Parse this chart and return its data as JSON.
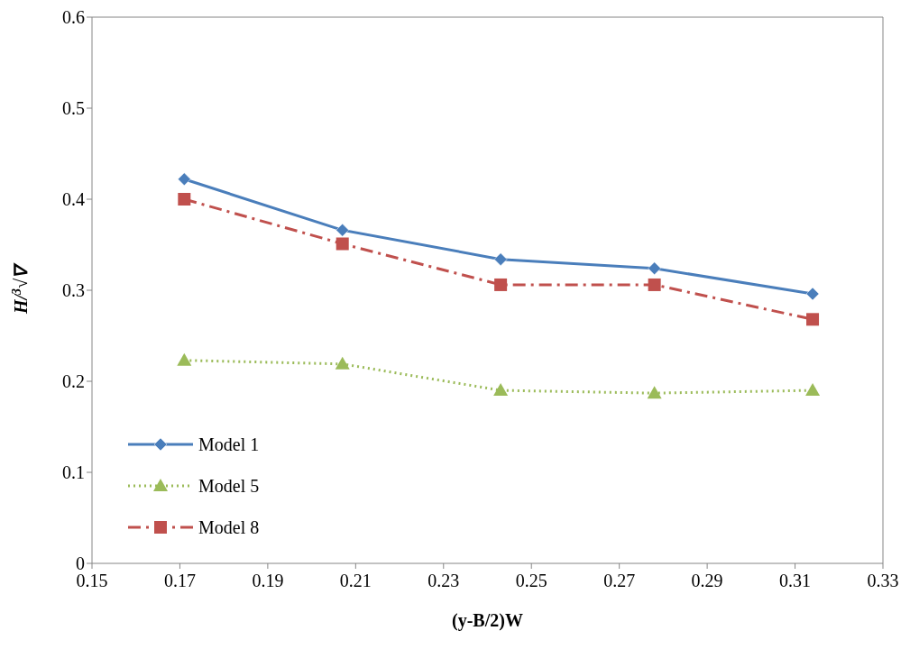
{
  "chart_data": {
    "type": "line",
    "xlabel": "(y-B/2)W",
    "ylabel": "H/$^{3}$√∇",
    "x": [
      0.171,
      0.207,
      0.243,
      0.278,
      0.314
    ],
    "series": [
      {
        "name": "Model 1",
        "color": "#4a7ebb",
        "values": [
          0.422,
          0.366,
          0.334,
          0.324,
          0.296
        ],
        "marker": "diamond",
        "line_style": "solid"
      },
      {
        "name": "Model 5",
        "color": "#9bbb59",
        "values": [
          0.223,
          0.219,
          0.19,
          0.187,
          0.19
        ],
        "marker": "triangle",
        "line_style": "dotted"
      },
      {
        "name": "Model 8",
        "color": "#c0504d",
        "values": [
          0.4,
          0.351,
          0.306,
          0.306,
          0.268
        ],
        "marker": "square",
        "line_style": "dashed"
      }
    ],
    "xlim": [
      0.15,
      0.33
    ],
    "xticks": [
      0.15,
      0.17,
      0.19,
      0.21,
      0.23,
      0.25,
      0.27,
      0.29,
      0.31,
      0.33
    ],
    "ylim": [
      0,
      0.6
    ],
    "yticks": [
      0,
      0.1,
      0.2,
      0.3,
      0.4,
      0.5,
      0.6
    ],
    "grid": false,
    "legend": "bottom left"
  }
}
